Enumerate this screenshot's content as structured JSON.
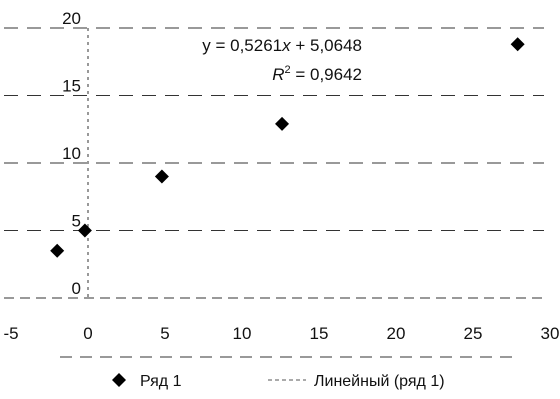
{
  "chart_data": {
    "type": "scatter",
    "series": [
      {
        "name": "Ряд 1",
        "points": [
          {
            "x": -2.0,
            "y": 3.5
          },
          {
            "x": -0.2,
            "y": 5.0
          },
          {
            "x": 4.8,
            "y": 9.0
          },
          {
            "x": 12.6,
            "y": 12.9
          },
          {
            "x": 27.9,
            "y": 18.8
          }
        ]
      }
    ],
    "trendline": {
      "name": "Линейный (ряд 1)",
      "equation_prefix": "y = 0,5261",
      "equation_var": "x",
      "equation_suffix": " + 5,0648",
      "r2_symbol": "R",
      "r2_sup": "2",
      "r2_value": " = 0,9642"
    },
    "x_ticks": [
      "-5",
      "0",
      "5",
      "10",
      "15",
      "20",
      "25",
      "30"
    ],
    "y_ticks": [
      "0",
      "5",
      "10",
      "15",
      "20"
    ],
    "xlim": [
      -5,
      30
    ],
    "ylim": [
      0,
      20
    ],
    "grid": "horizontal-dashed",
    "legend_placement": "bottom",
    "colors": {
      "marker": "#000000",
      "grid": "#333333",
      "trendline": "#555555"
    }
  }
}
